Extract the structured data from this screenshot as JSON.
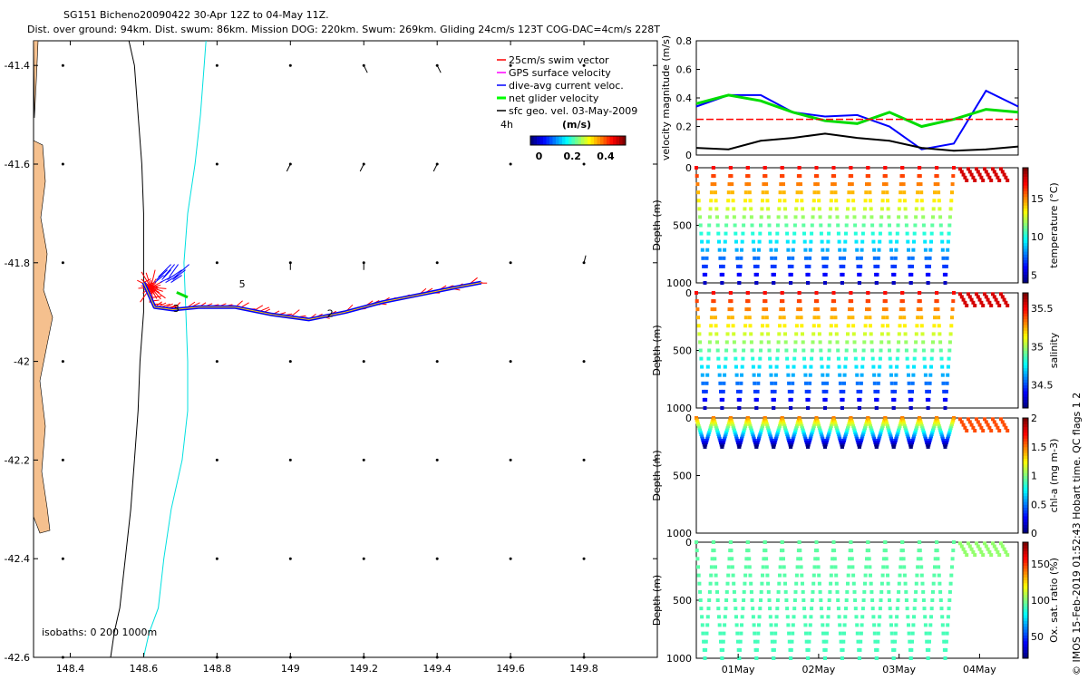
{
  "title": {
    "line1": "SG151 Bicheno20090422 30-Apr 12Z to 04-May 11Z.",
    "line2": "Dist. over ground: 94km. Dist. swum: 86km. Mission DOG: 220km. Swum: 269km. Gliding 24cm/s 123T COG-DAC=4cm/s 228T"
  },
  "map": {
    "legend": [
      {
        "label": "25cm/s swim vector",
        "color": "#ff0000"
      },
      {
        "label": "GPS surface velocity",
        "color": "#ff00ff"
      },
      {
        "label": "dive-avg current veloc.",
        "color": "#0000ff"
      },
      {
        "label": "net glider velocity",
        "color": "#00ff00"
      },
      {
        "label": "sfc geo. vel. 03-May-2009",
        "color": "#000000"
      }
    ],
    "scale_label": "4h",
    "colorbar_units": "(m/s)",
    "colorbar_ticks": [
      "0",
      "0.2",
      "0.4"
    ],
    "isobath_note": "isobaths: 0   200  1000m",
    "track_labels": [
      "5",
      "3",
      "2"
    ],
    "x_ticks": [
      "148.4",
      "148.6",
      "148.8",
      "149",
      "149.2",
      "149.4",
      "149.6",
      "149.8"
    ],
    "y_ticks": [
      "-41.4",
      "-41.6",
      "-41.8",
      "-42",
      "-42.2",
      "-42.4",
      "-42.6"
    ]
  },
  "panels": {
    "velocity": {
      "ylabel": "velocity magnitude (m/s)",
      "ticks": [
        "0",
        "0.2",
        "0.4",
        "0.6",
        "0.8"
      ]
    },
    "temperature": {
      "ylabel": "Depth (m)",
      "cblabel": "temperature (°C)",
      "cbticks": [
        "5",
        "10",
        "15"
      ],
      "yticks": [
        "0",
        "500",
        "1000"
      ]
    },
    "salinity": {
      "ylabel": "Depth (m)",
      "cblabel": "salinity",
      "cbticks": [
        "34.5",
        "35",
        "35.5"
      ],
      "yticks": [
        "0",
        "500",
        "1000"
      ]
    },
    "chla": {
      "ylabel": "Depth (m)",
      "cblabel": "chl-a (mg m-3)",
      "cbticks": [
        "0",
        "0.5",
        "1",
        "1.5",
        "2"
      ],
      "yticks": [
        "0",
        "500",
        "1000"
      ]
    },
    "oxygen": {
      "ylabel": "Depth (m)",
      "cblabel": "Ox. sat. ratio (%)",
      "cbticks": [
        "50",
        "100",
        "150"
      ],
      "yticks": [
        "0",
        "500",
        "1000"
      ]
    },
    "date_ticks": [
      "01May",
      "02May",
      "03May",
      "04May"
    ]
  },
  "footer": "© IMOS 15-Feb-2019 01:52:43 Hobart time. QC flags 1  2",
  "chart_data": [
    {
      "type": "scatter",
      "title": "SG151 Bicheno20090422 30-Apr 12Z to 04-May 11Z.",
      "xlabel": "",
      "ylabel": "",
      "xlim": [
        148.3,
        150.0
      ],
      "ylim": [
        -42.6,
        -41.35
      ],
      "glider_track": {
        "lon": [
          148.6,
          148.63,
          148.68,
          148.75,
          148.85,
          148.95,
          149.05,
          149.15,
          149.25,
          149.35,
          149.45,
          149.52
        ],
        "lat": [
          -41.84,
          -41.89,
          -41.895,
          -41.89,
          -41.89,
          -41.905,
          -41.915,
          -41.9,
          -41.88,
          -41.865,
          -41.85,
          -41.84
        ]
      },
      "isobath_0": {
        "lon": [
          148.56,
          148.575,
          148.585,
          148.595,
          148.6,
          148.6,
          148.6,
          148.59,
          148.585,
          148.575,
          148.565,
          148.55,
          148.535,
          148.52,
          148.51
        ],
        "lat": [
          -41.35,
          -41.4,
          -41.5,
          -41.6,
          -41.7,
          -41.8,
          -41.9,
          -42.0,
          -42.1,
          -42.2,
          -42.3,
          -42.4,
          -42.5,
          -42.55,
          -42.6
        ]
      },
      "isobath_1000": {
        "lon": [
          148.77,
          148.765,
          148.755,
          148.74,
          148.72,
          148.71,
          148.715,
          148.72,
          148.72,
          148.705,
          148.675,
          148.655,
          148.64,
          148.615,
          148.6
        ],
        "lat": [
          -41.35,
          -41.4,
          -41.5,
          -41.6,
          -41.7,
          -41.8,
          -41.9,
          -42.0,
          -42.1,
          -42.2,
          -42.3,
          -42.4,
          -42.5,
          -42.55,
          -42.6
        ]
      },
      "sfc_geo_vectors": {
        "lon": [
          148.8,
          149.0,
          149.2,
          149.4,
          149.6,
          149.8
        ],
        "lat": [
          -41.4,
          -41.6,
          -41.8,
          -42.0,
          -42.2,
          -42.4,
          -42.6
        ],
        "u_cms": [
          [
            0.0,
            0.0,
            1.0,
            1.0,
            0.0,
            0.0
          ],
          [
            0.0,
            -1.0,
            -1.0,
            -1.0,
            0.0,
            0.0
          ],
          [
            0.0,
            0.0,
            0.0,
            0.0,
            0.0,
            0.5
          ],
          [
            0.0,
            0.0,
            0.0,
            0.0,
            0.0,
            0.0
          ],
          [
            0.0,
            0.0,
            0.0,
            0.0,
            0.0,
            0.0
          ],
          [
            0.0,
            0.0,
            0.0,
            0.0,
            0.0,
            0.0
          ],
          [
            0.0,
            0.0,
            0.0,
            0.0,
            0.0,
            0.0
          ]
        ],
        "v_cms": [
          [
            0.0,
            0.0,
            -1.0,
            -1.0,
            0.0,
            0.0
          ],
          [
            0.0,
            -1.0,
            -1.0,
            -1.0,
            0.0,
            0.0
          ],
          [
            0.0,
            -1.0,
            -1.0,
            0.0,
            0.0,
            1.0
          ],
          [
            0.0,
            0.0,
            0.0,
            0.0,
            0.0,
            0.0
          ],
          [
            0.0,
            0.0,
            0.0,
            0.0,
            0.0,
            0.0
          ],
          [
            0.0,
            0.0,
            0.0,
            0.0,
            0.0,
            0.0
          ],
          [
            0.0,
            0.0,
            0.0,
            0.0,
            0.0,
            0.0
          ]
        ]
      }
    },
    {
      "type": "line",
      "ylabel": "velocity magnitude (m/s)",
      "ylim": [
        0,
        0.8
      ],
      "x": [
        0,
        0.1,
        0.2,
        0.3,
        0.4,
        0.5,
        0.6,
        0.7,
        0.8,
        0.9,
        1.0
      ],
      "series": [
        {
          "color": "#0000ff",
          "values": [
            0.34,
            0.42,
            0.42,
            0.3,
            0.27,
            0.28,
            0.2,
            0.04,
            0.08,
            0.45,
            0.34
          ]
        },
        {
          "color": "#00dd00",
          "values": [
            0.36,
            0.42,
            0.38,
            0.3,
            0.24,
            0.22,
            0.3,
            0.2,
            0.25,
            0.32,
            0.3
          ]
        },
        {
          "color": "#ff0000",
          "values": [
            0.25,
            0.25,
            0.25,
            0.25,
            0.25,
            0.25,
            0.25,
            0.25,
            0.25,
            0.25,
            0.25
          ]
        },
        {
          "color": "#000000",
          "values": [
            0.05,
            0.04,
            0.1,
            0.12,
            0.15,
            0.12,
            0.1,
            0.05,
            0.03,
            0.04,
            0.06
          ]
        }
      ]
    },
    {
      "type": "scatter",
      "ylabel": "Depth (m)",
      "cblabel": "temperature (°C)",
      "ylim": [
        1000,
        0
      ],
      "cblim": [
        4,
        19
      ],
      "dive_count": 15,
      "surface_value": 17,
      "bottom_value": 5,
      "max_depth": 1000
    },
    {
      "type": "scatter",
      "ylabel": "Depth (m)",
      "cblabel": "salinity",
      "ylim": [
        1000,
        0
      ],
      "cblim": [
        34.2,
        35.7
      ],
      "dive_count": 15,
      "surface_value": 35.5,
      "bottom_value": 34.3,
      "max_depth": 1000
    },
    {
      "type": "scatter",
      "ylabel": "Depth (m)",
      "cblabel": "chl-a (mg m-3)",
      "ylim": [
        1000,
        0
      ],
      "cblim": [
        0,
        2
      ],
      "dive_count": 15,
      "surface_value": 1.5,
      "bottom_value": 0,
      "max_depth": 250
    },
    {
      "type": "scatter",
      "ylabel": "Depth (m)",
      "cblabel": "Ox. sat. ratio (%)",
      "ylim": [
        1000,
        0
      ],
      "cblim": [
        20,
        180
      ],
      "dive_count": 15,
      "surface_value": 95,
      "bottom_value": 90,
      "max_depth": 1000
    }
  ]
}
